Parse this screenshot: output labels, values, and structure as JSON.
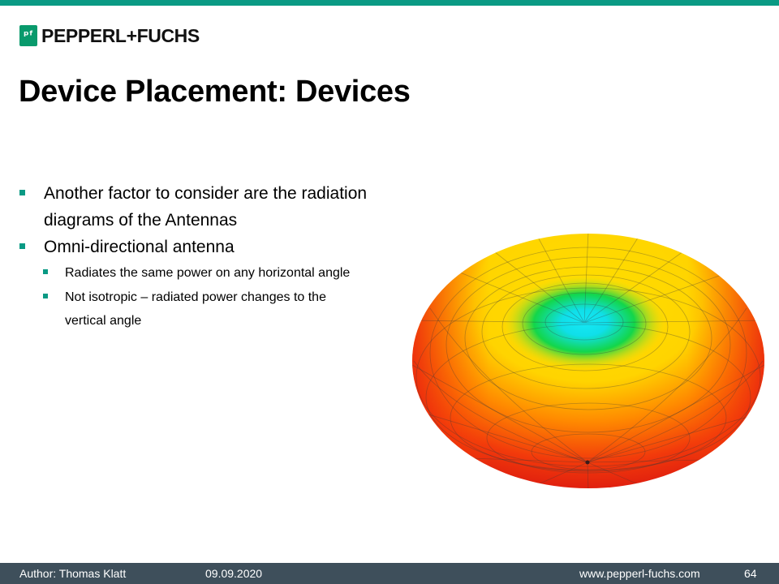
{
  "header": {
    "accent_color": "#0a9a84",
    "logo": {
      "icon": "pepperl-fuchs-logo-icon",
      "text": "PEPPERL+FUCHS"
    }
  },
  "slide": {
    "title": "Device Placement: Devices",
    "bullets": [
      {
        "text": "Another factor to consider are the radiation diagrams of the Antennas",
        "sub": []
      },
      {
        "text": "Omni-directional antenna",
        "sub": [
          "Radiates the same power on any horizontal angle",
          "Not isotropic – radiated power changes to the vertical angle"
        ]
      }
    ],
    "figure": {
      "icon": "omni-antenna-radiation-pattern-icon",
      "colors": [
        "#e8110f",
        "#ff7a00",
        "#ffdf00",
        "#13d64a",
        "#10dfe9"
      ]
    }
  },
  "footer": {
    "author": "Author:  Thomas Klatt",
    "date": "09.09.2020",
    "website": "www.pepperl-fuchs.com",
    "page_number": "64",
    "background": "#3e4f5b"
  }
}
